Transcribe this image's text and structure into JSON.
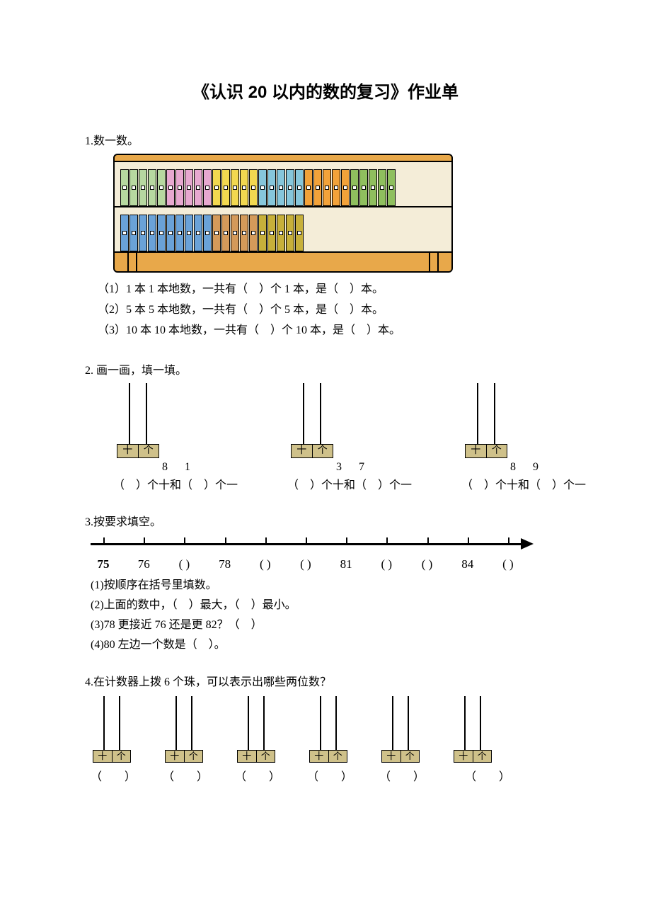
{
  "title": "《认识 20 以内的数的复习》作业单",
  "q1": {
    "label": "1.数一数。",
    "shelf": {
      "colors_row1": [
        "#b7d8a0",
        "#b7d8a0",
        "#b7d8a0",
        "#b7d8a0",
        "#b7d8a0",
        "#e7a8d0",
        "#e7a8d0",
        "#e7a8d0",
        "#e7a8d0",
        "#e7a8d0",
        "#f2d850",
        "#f2d850",
        "#f2d850",
        "#f2d850",
        "#f2d850",
        "#86c6db",
        "#86c6db",
        "#86c6db",
        "#86c6db",
        "#86c6db",
        "#f2a23a",
        "#f2a23a",
        "#f2a23a",
        "#f2a23a",
        "#f2a23a",
        "#8fbf5e",
        "#8fbf5e",
        "#8fbf5e",
        "#8fbf5e",
        "#8fbf5e"
      ],
      "colors_row2": [
        "#6aa2d8",
        "#6aa2d8",
        "#6aa2d8",
        "#6aa2d8",
        "#6aa2d8",
        "#6aa2d8",
        "#6aa2d8",
        "#6aa2d8",
        "#6aa2d8",
        "#6aa2d8",
        "#d49a5a",
        "#d49a5a",
        "#d49a5a",
        "#d49a5a",
        "#d49a5a",
        "#c7b03a",
        "#c7b03a",
        "#c7b03a",
        "#c7b03a",
        "#c7b03a"
      ],
      "frame_color": "#e8a84a",
      "inner_color": "#f4edd8"
    },
    "lines": {
      "l1": "（1）1 本 1 本地数，一共有（　）个 1 本，是（　）本。",
      "l2": "（2）5 本 5 本地数，一共有（　）个 5 本，是（　）本。",
      "l3": "（3）10 本 10 本地数，一共有（　）个 10 本，是（　）本。"
    }
  },
  "q2": {
    "label": "2. 画一画，填一填。",
    "base_labels": {
      "tens": "十",
      "ones": "个"
    },
    "items": [
      {
        "num": "8  1",
        "text": "（　）个十和（　）个一"
      },
      {
        "num": "3  7",
        "text": "（　）个十和（　）个一"
      },
      {
        "num": "8  9",
        "text": "（　）个十和（　）个一"
      }
    ],
    "base_color": "#cfc18a"
  },
  "q3": {
    "label": "3.按要求填空。",
    "ticks": 11,
    "labels": [
      "75",
      "76",
      "(  )",
      "78",
      "(  )",
      "(  )",
      "81",
      "(  )",
      "(  )",
      "84",
      "(  )"
    ],
    "lines": {
      "l1": "(1)按顺序在括号里填数。",
      "l2": "(2)上面的数中，（　）最大，（　）最小。",
      "l3": "(3)78 更接近 76 还是更 82？（　）",
      "l4": "(4)80 左边一个数是（　）。"
    }
  },
  "q4": {
    "label": "4.在计数器上拨 6 个珠，可以表示出哪些两位数？",
    "count": 6,
    "paren": "（　　）"
  }
}
